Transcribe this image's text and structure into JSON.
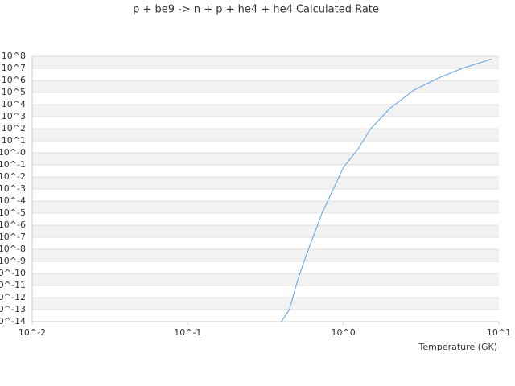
{
  "chart_data": {
    "type": "line",
    "title": "p + be9 -> n + p + he4 + he4 Calculated Rate",
    "x_label": "Temperature (GK)",
    "x_scale": "log",
    "y_scale": "log",
    "grid": true,
    "color": "#5aa0e6",
    "x": [
      0.4,
      0.45,
      0.51,
      0.57,
      0.73,
      1.0,
      1.24,
      1.5,
      2.0,
      2.85,
      4.1,
      5.8,
      9.0
    ],
    "values": [
      1e-14,
      1e-13,
      3e-11,
      2e-09,
      1e-05,
      0.06,
      2,
      100,
      5000,
      160000,
      1600000,
      10000000,
      60000000
    ],
    "xlim": [
      0.01,
      10
    ],
    "ylim": [
      1e-14,
      100000000.0
    ],
    "xticks": [
      {
        "value": 0.01,
        "label": "10^-2"
      },
      {
        "value": 0.1,
        "label": "10^-1"
      },
      {
        "value": 1,
        "label": "10^0"
      },
      {
        "value": 10,
        "label": "10^1"
      }
    ],
    "yticks": [
      {
        "value": 1e-14,
        "label": "10^-14"
      },
      {
        "value": 1e-13,
        "label": "10^-13"
      },
      {
        "value": 1e-12,
        "label": "10^-12"
      },
      {
        "value": 1e-11,
        "label": "10^-11"
      },
      {
        "value": 1e-10,
        "label": "10^-10"
      },
      {
        "value": 1e-09,
        "label": "10^-9"
      },
      {
        "value": 1e-08,
        "label": "10^-8"
      },
      {
        "value": 1e-07,
        "label": "10^-7"
      },
      {
        "value": 1e-06,
        "label": "10^-6"
      },
      {
        "value": 1e-05,
        "label": "10^-5"
      },
      {
        "value": 0.0001,
        "label": "10^-4"
      },
      {
        "value": 0.001,
        "label": "10^-3"
      },
      {
        "value": 0.01,
        "label": "10^-2"
      },
      {
        "value": 0.1,
        "label": "10^-1"
      },
      {
        "value": 1,
        "label": "10^-0"
      },
      {
        "value": 10,
        "label": "10^1"
      },
      {
        "value": 100,
        "label": "10^2"
      },
      {
        "value": 1000,
        "label": "10^3"
      },
      {
        "value": 10000,
        "label": "10^4"
      },
      {
        "value": 100000,
        "label": "10^5"
      },
      {
        "value": 1000000,
        "label": "10^6"
      },
      {
        "value": 10000000,
        "label": "10^7"
      },
      {
        "value": 100000000,
        "label": "10^8"
      }
    ]
  }
}
